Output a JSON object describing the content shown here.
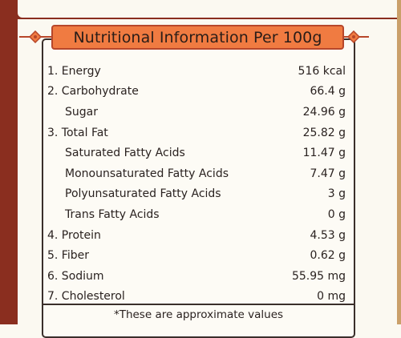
{
  "title": "Nutritional Information Per 100g",
  "rows": [
    {
      "label": "1. Energy",
      "value": "516 kcal",
      "sub": false
    },
    {
      "label": "2. Carbohydrate",
      "value": "66.4 g",
      "sub": false
    },
    {
      "label": "Sugar",
      "value": "24.96 g",
      "sub": true
    },
    {
      "label": "3. Total Fat",
      "value": "25.82 g",
      "sub": false
    },
    {
      "label": "Saturated Fatty Acids",
      "value": "11.47 g",
      "sub": true
    },
    {
      "label": "Monounsaturated Fatty Acids",
      "value": "7.47 g",
      "sub": true
    },
    {
      "label": "Polyunsaturated Fatty Acids",
      "value": "3 g",
      "sub": true
    },
    {
      "label": "Trans Fatty Acids",
      "value": "0 g",
      "sub": true
    },
    {
      "label": "4. Protein",
      "value": "4.53 g",
      "sub": false
    },
    {
      "label": "5. Fiber",
      "value": "0.62 g",
      "sub": false
    },
    {
      "label": "6. Sodium",
      "value": "55.95 mg",
      "sub": false
    },
    {
      "label": "7. Cholesterol",
      "value": "0 mg",
      "sub": false
    }
  ],
  "footnote": "*These are approximate values",
  "colors": {
    "banner_fill": "#f07b41",
    "banner_border": "#b7472a",
    "package_red": "#8a2e1f",
    "text": "#2a2220"
  },
  "icons": [
    "diamond-ornament-icon"
  ]
}
